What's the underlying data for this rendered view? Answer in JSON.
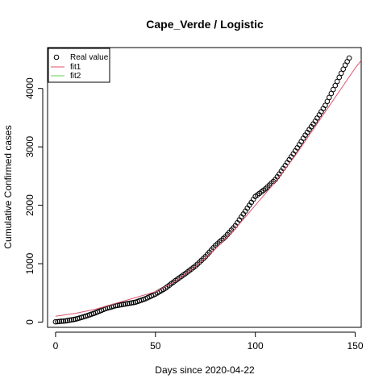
{
  "chart_data": {
    "type": "scatter",
    "title": "Cape_Verde / Logistic",
    "xlabel": "Days since 2020-04-22",
    "ylabel": "Cumulative Confirmed cases",
    "xlim": [
      -4,
      153
    ],
    "ylim": [
      -90,
      4700
    ],
    "x_ticks": [
      0,
      50,
      100,
      150
    ],
    "y_ticks": [
      0,
      1000,
      2000,
      3000,
      4000
    ],
    "grid": false,
    "legend_position": "top-left",
    "legend": [
      {
        "label": "Real value",
        "symbol": "circle",
        "color": "#000000"
      },
      {
        "label": "fit1",
        "symbol": "line",
        "color": "#DF536B"
      },
      {
        "label": "fit2",
        "symbol": "line",
        "color": "#61D04F"
      }
    ],
    "series": [
      {
        "name": "Real value",
        "kind": "points",
        "color": "#000000",
        "x": [
          0,
          5,
          10,
          15,
          20,
          25,
          30,
          35,
          40,
          45,
          50,
          55,
          60,
          65,
          70,
          75,
          80,
          85,
          90,
          95,
          100,
          105,
          110,
          115,
          120,
          125,
          130,
          135,
          140,
          145,
          147
        ],
        "y": [
          5,
          20,
          50,
          100,
          160,
          230,
          280,
          310,
          340,
          400,
          480,
          580,
          710,
          830,
          960,
          1120,
          1310,
          1460,
          1650,
          1900,
          2150,
          2280,
          2440,
          2680,
          2930,
          3200,
          3440,
          3710,
          4050,
          4400,
          4520
        ]
      },
      {
        "name": "fit1",
        "kind": "line",
        "color": "#DF536B",
        "x": [
          0,
          10,
          20,
          30,
          40,
          50,
          60,
          70,
          80,
          90,
          100,
          110,
          120,
          130,
          140,
          150,
          153
        ],
        "y": [
          100,
          150,
          220,
          320,
          420,
          520,
          700,
          950,
          1250,
          1600,
          2000,
          2400,
          2850,
          3350,
          3850,
          4350,
          4480
        ]
      },
      {
        "name": "fit2",
        "kind": "line",
        "color": "#61D04F",
        "x": [],
        "y": []
      }
    ]
  }
}
